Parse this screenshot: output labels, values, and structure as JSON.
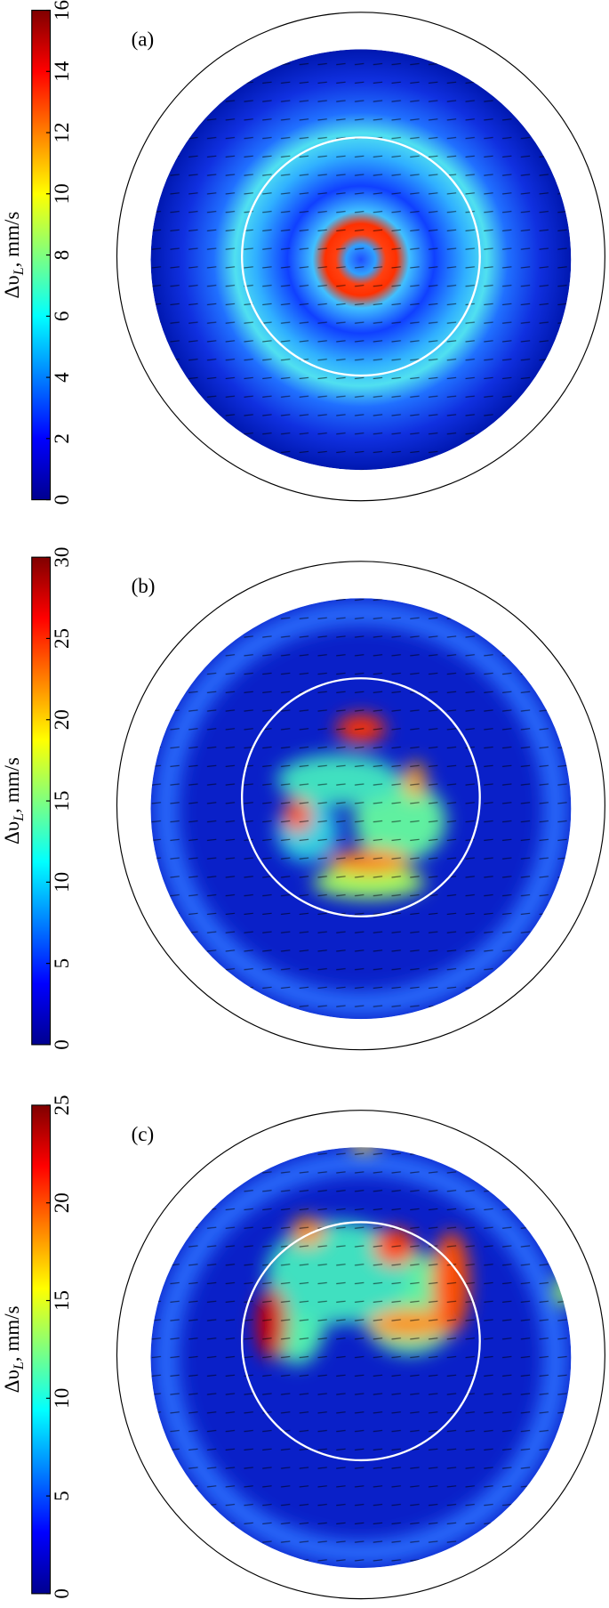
{
  "chart_data": [
    {
      "type": "heatmap",
      "panel_label": "(a)",
      "colorbar_label": {
        "symbol": "Δυ",
        "subscript": "L",
        "unit": ", mm/s"
      },
      "colormap": "jet",
      "clim": [
        0,
        16
      ],
      "cticks": [
        0,
        2,
        4,
        6,
        8,
        10,
        12,
        14,
        16
      ]
    },
    {
      "type": "heatmap",
      "panel_label": "(b)",
      "colorbar_label": {
        "symbol": "Δυ",
        "subscript": "L",
        "unit": ", mm/s"
      },
      "colormap": "jet",
      "clim": [
        0,
        30
      ],
      "cticks": [
        0,
        5,
        10,
        15,
        20,
        25,
        30
      ]
    },
    {
      "type": "heatmap",
      "panel_label": "(c)",
      "colorbar_label": {
        "symbol": "Δυ",
        "subscript": "L",
        "unit": ", mm/s"
      },
      "colormap": "jet",
      "clim": [
        0,
        25
      ],
      "cticks": [
        0,
        5,
        10,
        15,
        20,
        25
      ]
    }
  ]
}
